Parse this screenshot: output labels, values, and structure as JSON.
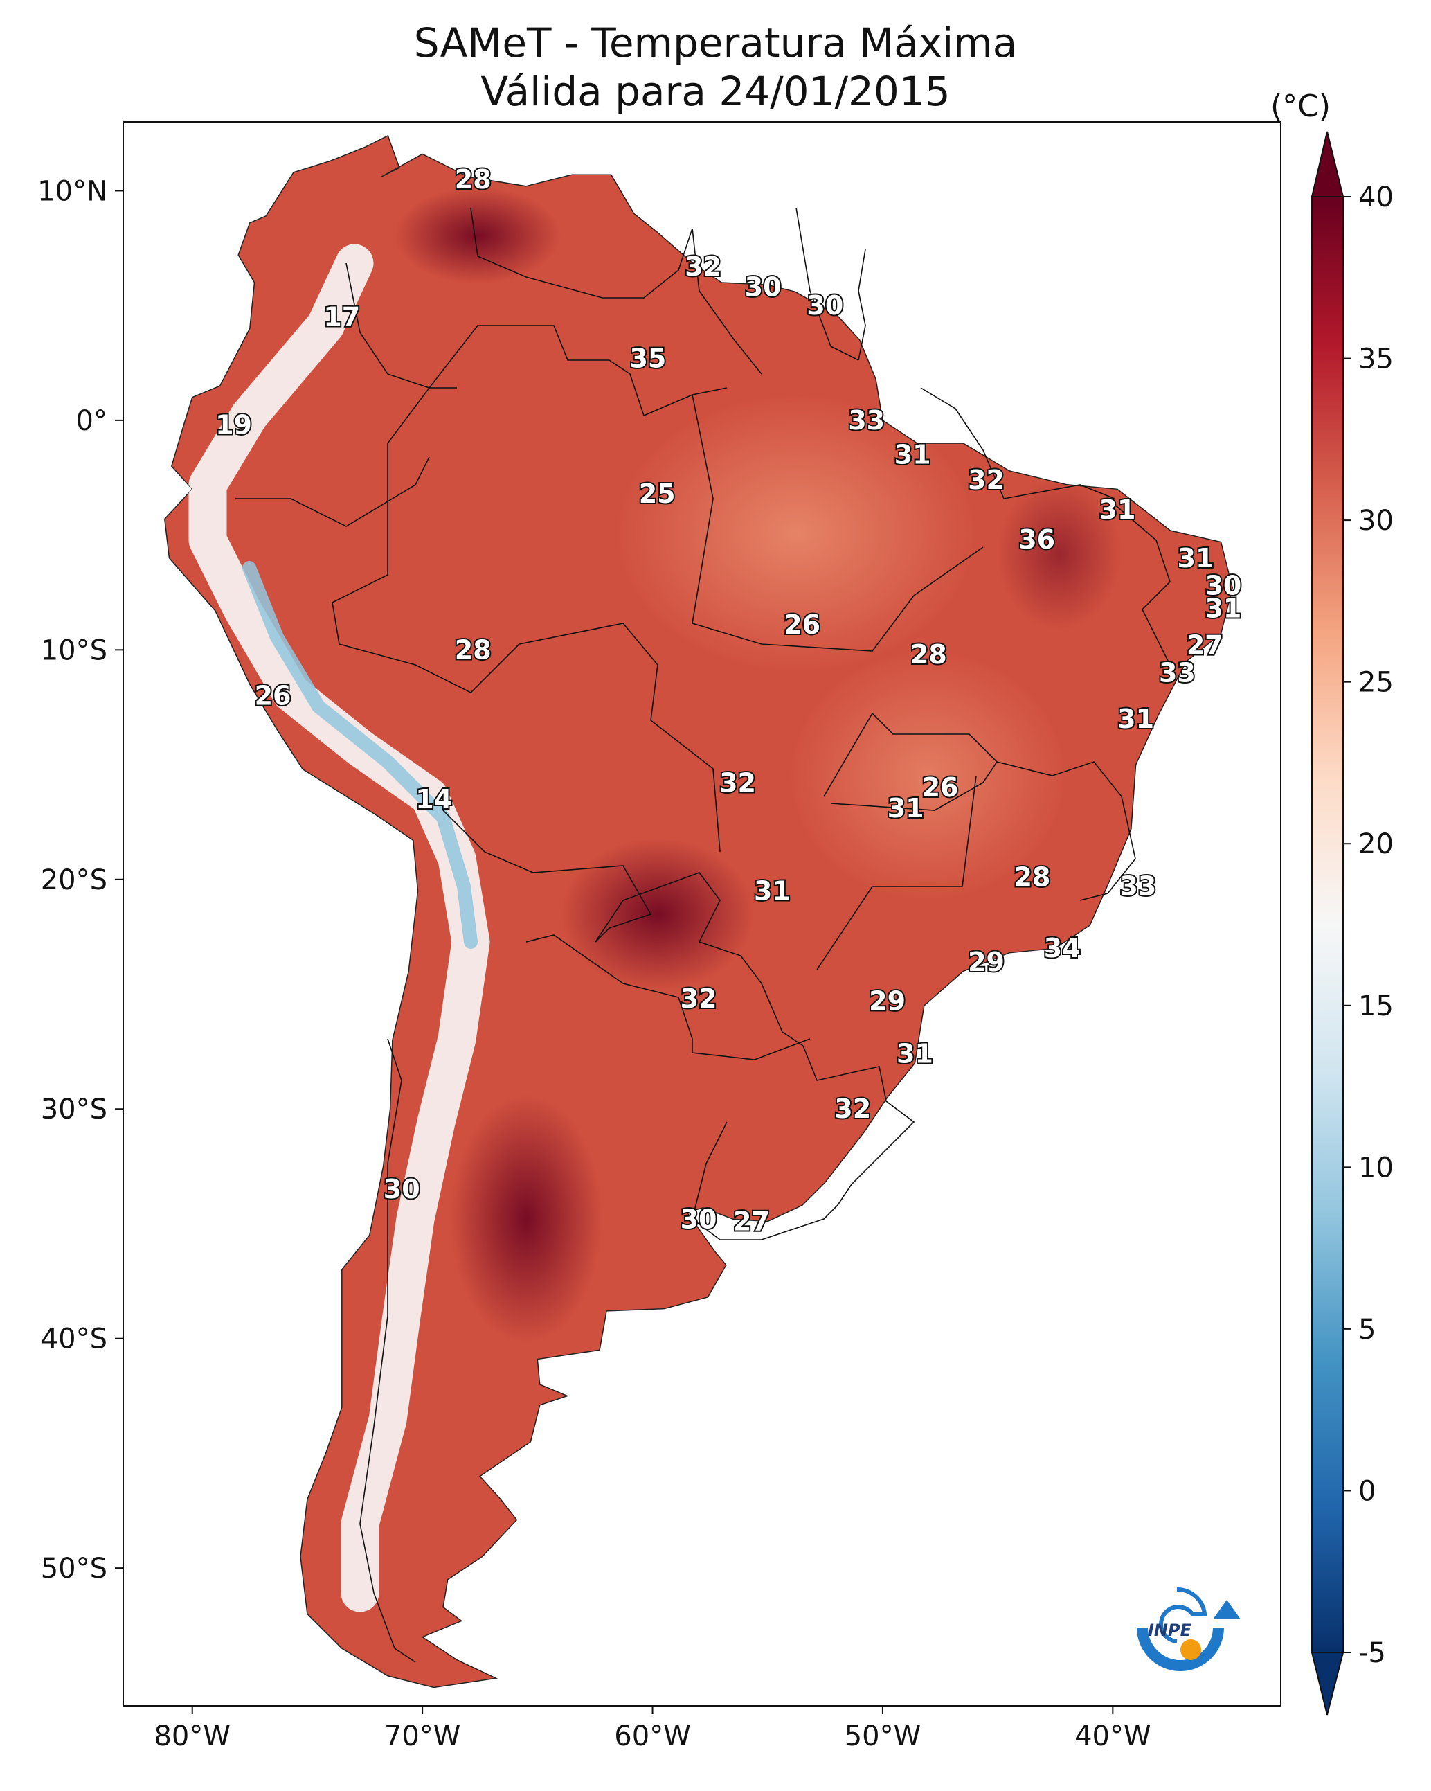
{
  "title": "SAMeT - Temperatura Máxima",
  "subtitle": "Válida para 24/01/2015",
  "colorbar": {
    "unit": "(°C)",
    "ticks": [
      "40",
      "35",
      "30",
      "25",
      "20",
      "15",
      "10",
      "5",
      "0",
      "-5"
    ],
    "min": -5,
    "max": 40,
    "colors": [
      "#08306b",
      "#2166ac",
      "#4393c3",
      "#92c5de",
      "#d1e5f0",
      "#f7f7f7",
      "#fddbc7",
      "#f4a582",
      "#d6604d",
      "#b2182b",
      "#67001f"
    ]
  },
  "axes": {
    "lat_ticks": [
      "10°N",
      "0°",
      "10°S",
      "20°S",
      "30°S",
      "40°S",
      "50°S"
    ],
    "lon_ticks": [
      "80°W",
      "70°W",
      "60°W",
      "50°W",
      "40°W"
    ]
  },
  "logo": {
    "text": "INPE",
    "colors": {
      "blue": "#1f78c8",
      "orange": "#f39c12"
    }
  },
  "map_values": [
    {
      "lon": -67.8,
      "lat": 10.5,
      "value": "28"
    },
    {
      "lon": -73.5,
      "lat": 4.5,
      "value": "17"
    },
    {
      "lon": -57.8,
      "lat": 6.7,
      "value": "32"
    },
    {
      "lon": -55.2,
      "lat": 5.8,
      "value": "30"
    },
    {
      "lon": -52.5,
      "lat": 5.0,
      "value": "30"
    },
    {
      "lon": -60.2,
      "lat": 2.7,
      "value": "35"
    },
    {
      "lon": -78.2,
      "lat": -0.2,
      "value": "19"
    },
    {
      "lon": -50.7,
      "lat": 0.0,
      "value": "33"
    },
    {
      "lon": -48.7,
      "lat": -1.5,
      "value": "31"
    },
    {
      "lon": -59.8,
      "lat": -3.2,
      "value": "25"
    },
    {
      "lon": -45.5,
      "lat": -2.6,
      "value": "32"
    },
    {
      "lon": -39.8,
      "lat": -3.9,
      "value": "31"
    },
    {
      "lon": -43.3,
      "lat": -5.2,
      "value": "36"
    },
    {
      "lon": -36.4,
      "lat": -6.0,
      "value": "31"
    },
    {
      "lon": -35.2,
      "lat": -7.2,
      "value": "30"
    },
    {
      "lon": -35.2,
      "lat": -8.2,
      "value": "31"
    },
    {
      "lon": -36.0,
      "lat": -9.8,
      "value": "27"
    },
    {
      "lon": -37.2,
      "lat": -11.0,
      "value": "33"
    },
    {
      "lon": -53.5,
      "lat": -8.9,
      "value": "26"
    },
    {
      "lon": -67.8,
      "lat": -10.0,
      "value": "28"
    },
    {
      "lon": -48.0,
      "lat": -10.2,
      "value": "28"
    },
    {
      "lon": -76.5,
      "lat": -12.0,
      "value": "26"
    },
    {
      "lon": -39.0,
      "lat": -13.0,
      "value": "31"
    },
    {
      "lon": -56.3,
      "lat": -15.8,
      "value": "32"
    },
    {
      "lon": -47.5,
      "lat": -16.0,
      "value": "26"
    },
    {
      "lon": -49.0,
      "lat": -16.9,
      "value": "31"
    },
    {
      "lon": -69.5,
      "lat": -16.5,
      "value": "14"
    },
    {
      "lon": -43.5,
      "lat": -19.9,
      "value": "28"
    },
    {
      "lon": -38.9,
      "lat": -20.3,
      "value": "33"
    },
    {
      "lon": -54.8,
      "lat": -20.5,
      "value": "31"
    },
    {
      "lon": -42.2,
      "lat": -23.0,
      "value": "34"
    },
    {
      "lon": -45.5,
      "lat": -23.6,
      "value": "29"
    },
    {
      "lon": -58.0,
      "lat": -25.2,
      "value": "32"
    },
    {
      "lon": -49.8,
      "lat": -25.3,
      "value": "29"
    },
    {
      "lon": -48.6,
      "lat": -27.6,
      "value": "31"
    },
    {
      "lon": -51.3,
      "lat": -30.0,
      "value": "32"
    },
    {
      "lon": -70.9,
      "lat": -33.5,
      "value": "30"
    },
    {
      "lon": -58.0,
      "lat": -34.8,
      "value": "30"
    },
    {
      "lon": -55.7,
      "lat": -34.9,
      "value": "27"
    }
  ]
}
